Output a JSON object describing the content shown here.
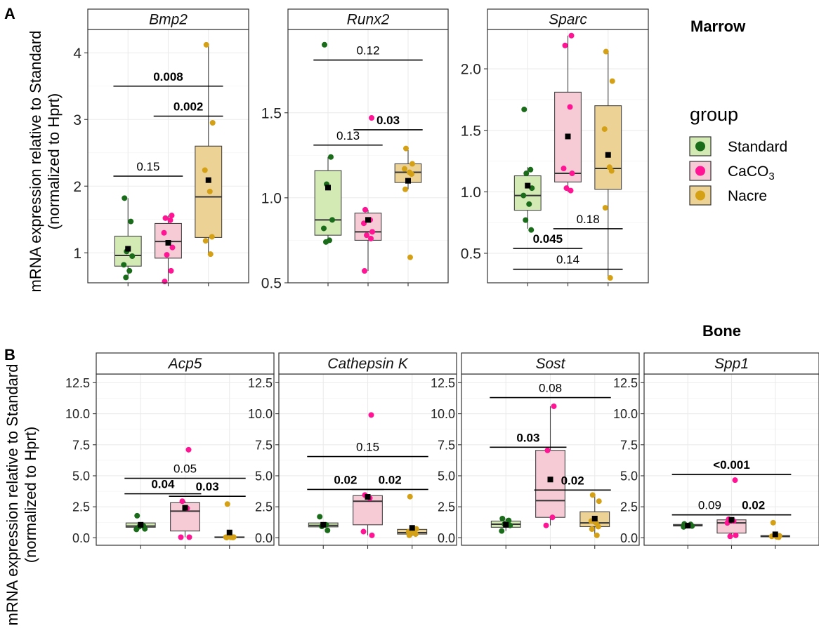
{
  "labels": {
    "panel_a": "A",
    "panel_b": "B",
    "marrow": "Marrow",
    "bone": "Bone",
    "ylabel_line1": "mRNA expression relative to Standard",
    "ylabel_line2": "(normalized to Hprt)"
  },
  "legend": {
    "title": "group",
    "placement": "right",
    "items": [
      {
        "label": "Standard",
        "fill": "#d3eab5",
        "point": "#1a6b1a"
      },
      {
        "label": "CaCO",
        "sub": "3",
        "fill": "#f6cbd6",
        "point": "#ff1493"
      },
      {
        "label": "Nacre",
        "fill": "#edd295",
        "point": "#d4a015"
      }
    ]
  },
  "colors": {
    "standard_box": "#d3eab5",
    "caco3_box": "#f6cbd6",
    "nacre_box": "#edd295",
    "standard_point": "#1a6b1a",
    "caco3_point": "#ff1493",
    "nacre_point": "#d4a015",
    "mean_marker": "#000000",
    "strip_bg": "#ffffff",
    "grid": "#ebebeb"
  },
  "chart_data": [
    {
      "type": "box",
      "section": "Marrow",
      "facet": "Bmp2",
      "ylim": [
        0.55,
        4.35
      ],
      "yticks": [
        1,
        2,
        3,
        4
      ],
      "tick_labels": [
        "1",
        "2",
        "3",
        "4"
      ],
      "groups": [
        {
          "name": "Standard",
          "q1": 0.8,
          "median": 0.96,
          "q3": 1.25,
          "wlo": 0.65,
          "whi": 1.82,
          "mean": 1.06,
          "points": [
            1.82,
            1.47,
            1.02,
            0.95,
            0.82,
            0.73,
            0.63
          ]
        },
        {
          "name": "CaCO3",
          "q1": 0.92,
          "median": 1.17,
          "q3": 1.44,
          "wlo": 0.57,
          "whi": 1.56,
          "mean": 1.15,
          "points": [
            1.56,
            1.52,
            1.49,
            1.3,
            1.08,
            0.97,
            0.73,
            0.57
          ]
        },
        {
          "name": "Nacre",
          "q1": 1.23,
          "median": 1.84,
          "q3": 2.6,
          "wlo": 0.97,
          "whi": 4.1,
          "mean": 2.09,
          "points": [
            4.12,
            2.95,
            2.24,
            1.92,
            1.24,
            1.18,
            0.98
          ]
        }
      ],
      "comparisons": [
        {
          "from": 0,
          "to": 1,
          "y": 2.15,
          "label": "0.15",
          "bold": false
        },
        {
          "from": 1,
          "to": 2,
          "y": 3.05,
          "label": "0.002",
          "bold": true
        },
        {
          "from": 0,
          "to": 2,
          "y": 3.5,
          "label": "0.008",
          "bold": true
        }
      ]
    },
    {
      "type": "box",
      "section": "Marrow",
      "facet": "Runx2",
      "ylim": [
        0.5,
        1.99
      ],
      "yticks": [
        0.5,
        1.0,
        1.5
      ],
      "tick_labels": [
        "0.5",
        "1.0",
        "1.5"
      ],
      "groups": [
        {
          "name": "Standard",
          "q1": 0.78,
          "median": 0.87,
          "q3": 1.16,
          "wlo": 0.73,
          "whi": 1.24,
          "mean": 1.06,
          "points": [
            1.9,
            1.24,
            1.08,
            0.87,
            0.82,
            0.75,
            0.74
          ]
        },
        {
          "name": "CaCO3",
          "q1": 0.75,
          "median": 0.8,
          "q3": 0.91,
          "wlo": 0.57,
          "whi": 0.93,
          "mean": 0.87,
          "points": [
            1.47,
            0.93,
            0.87,
            0.85,
            0.8,
            0.78,
            0.76,
            0.57
          ]
        },
        {
          "name": "Nacre",
          "q1": 1.09,
          "median": 1.15,
          "q3": 1.2,
          "wlo": 1.05,
          "whi": 1.28,
          "mean": 1.1,
          "points": [
            1.29,
            1.2,
            1.17,
            1.15,
            1.14,
            1.05,
            0.65
          ]
        }
      ],
      "comparisons": [
        {
          "from": 0,
          "to": 1,
          "y": 1.31,
          "label": "0.13",
          "bold": false
        },
        {
          "from": 1,
          "to": 2,
          "y": 1.4,
          "label": "0.03",
          "bold": true
        },
        {
          "from": 0,
          "to": 2,
          "y": 1.81,
          "label": "0.12",
          "bold": false
        }
      ]
    },
    {
      "type": "box",
      "section": "Marrow",
      "facet": "Sparc",
      "ylim": [
        0.26,
        2.32
      ],
      "yticks": [
        0.5,
        1.0,
        1.5,
        2.0
      ],
      "tick_labels": [
        "0.5",
        "1.0",
        "1.5",
        "2.0"
      ],
      "groups": [
        {
          "name": "Standard",
          "q1": 0.85,
          "median": 0.97,
          "q3": 1.13,
          "wlo": 0.7,
          "whi": 1.2,
          "mean": 1.05,
          "points": [
            1.67,
            1.18,
            1.15,
            1.03,
            0.97,
            0.9,
            0.77,
            0.69
          ]
        },
        {
          "name": "CaCO3",
          "q1": 1.08,
          "median": 1.15,
          "q3": 1.81,
          "wlo": 1.0,
          "whi": 2.27,
          "mean": 1.45,
          "points": [
            2.27,
            2.19,
            1.69,
            1.19,
            1.15,
            1.03,
            1.01
          ]
        },
        {
          "name": "Nacre",
          "q1": 1.02,
          "median": 1.19,
          "q3": 1.7,
          "wlo": 0.3,
          "whi": 2.14,
          "mean": 1.3,
          "points": [
            2.14,
            1.9,
            1.51,
            1.2,
            1.17,
            0.87,
            0.3
          ]
        }
      ],
      "comparisons": [
        {
          "from": 0,
          "to": 1,
          "y": 0.54,
          "label": "0.045",
          "bold": true
        },
        {
          "from": 1,
          "to": 2,
          "y": 0.7,
          "label": "0.18",
          "bold": false
        },
        {
          "from": 0,
          "to": 2,
          "y": 0.37,
          "label": "0.14",
          "bold": false
        }
      ]
    },
    {
      "type": "box",
      "section": "Bone",
      "facet": "Acp5",
      "ylim": [
        -0.6,
        13.2
      ],
      "yticks": [
        0,
        2.5,
        5,
        7.5,
        10,
        12.5
      ],
      "tick_labels": [
        "0.0",
        "2.5",
        "5.0",
        "7.5",
        "10.0",
        "12.5"
      ],
      "groups": [
        {
          "name": "Standard",
          "q1": 0.85,
          "median": 0.95,
          "q3": 1.2,
          "wlo": 0.75,
          "whi": 1.25,
          "mean": 1.05,
          "points": [
            1.78,
            0.95,
            0.9,
            0.72,
            0.68
          ]
        },
        {
          "name": "CaCO3",
          "q1": 0.55,
          "median": 2.15,
          "q3": 2.83,
          "wlo": 0.05,
          "whi": 2.95,
          "mean": 2.42,
          "points": [
            7.1,
            2.95,
            2.38,
            0.05,
            0.05
          ]
        },
        {
          "name": "Nacre",
          "q1": 0.02,
          "median": 0.04,
          "q3": 0.08,
          "wlo": 0.0,
          "whi": 0.12,
          "mean": 0.43,
          "points": [
            2.72,
            0.06,
            0.05,
            0.04,
            0.03,
            0.02
          ]
        }
      ],
      "comparisons": [
        {
          "from": 0,
          "to": 1,
          "y": 3.55,
          "label": "0.04",
          "bold": true
        },
        {
          "from": 1,
          "to": 2,
          "y": 3.35,
          "label": "0.03",
          "bold": true
        },
        {
          "from": 0,
          "to": 2,
          "y": 4.8,
          "label": "0.05",
          "bold": false
        }
      ]
    },
    {
      "type": "box",
      "section": "Bone",
      "facet": "Cathepsin K",
      "ylim": [
        -0.6,
        13.2
      ],
      "yticks": [
        0,
        2.5,
        5,
        7.5,
        10,
        12.5
      ],
      "tick_labels": [
        "0.0",
        "2.5",
        "5.0",
        "7.5",
        "10.0",
        "12.5"
      ],
      "groups": [
        {
          "name": "Standard",
          "q1": 0.88,
          "median": 1.0,
          "q3": 1.2,
          "wlo": 0.85,
          "whi": 1.25,
          "mean": 1.05,
          "points": [
            1.7,
            1.05,
            0.92,
            0.6
          ]
        },
        {
          "name": "CaCO3",
          "q1": 1.05,
          "median": 2.95,
          "q3": 3.4,
          "wlo": 0.2,
          "whi": 3.45,
          "mean": 3.3,
          "points": [
            9.9,
            3.45,
            3.2,
            0.5,
            0.2
          ]
        },
        {
          "name": "Nacre",
          "q1": 0.3,
          "median": 0.42,
          "q3": 0.68,
          "wlo": 0.15,
          "whi": 0.75,
          "mean": 0.8,
          "points": [
            3.32,
            0.72,
            0.5,
            0.4,
            0.3,
            0.2
          ]
        }
      ],
      "comparisons": [
        {
          "from": 0,
          "to": 1,
          "y": 3.9,
          "label": "0.02",
          "bold": true
        },
        {
          "from": 1,
          "to": 2,
          "y": 3.9,
          "label": "0.02",
          "bold": true
        },
        {
          "from": 0,
          "to": 2,
          "y": 6.55,
          "label": "0.15",
          "bold": false
        }
      ]
    },
    {
      "type": "box",
      "section": "Bone",
      "facet": "Sost",
      "ylim": [
        -0.6,
        13.2
      ],
      "yticks": [
        0,
        2.5,
        5,
        7.5,
        10,
        12.5
      ],
      "tick_labels": [
        "0.0",
        "2.5",
        "5.0",
        "7.5",
        "10.0",
        "12.5"
      ],
      "groups": [
        {
          "name": "Standard",
          "q1": 0.85,
          "median": 1.1,
          "q3": 1.35,
          "wlo": 0.55,
          "whi": 1.55,
          "mean": 1.05,
          "points": [
            1.55,
            1.4,
            1.1,
            1.0,
            0.55
          ]
        },
        {
          "name": "CaCO3",
          "q1": 1.65,
          "median": 3.0,
          "q3": 7.05,
          "wlo": 1.0,
          "whi": 10.6,
          "mean": 4.7,
          "points": [
            10.6,
            7.05,
            1.65,
            1.0
          ]
        },
        {
          "name": "Nacre",
          "q1": 0.9,
          "median": 1.2,
          "q3": 2.1,
          "wlo": 0.2,
          "whi": 3.45,
          "mean": 1.55,
          "points": [
            3.45,
            2.95,
            1.35,
            1.2,
            0.9,
            0.7,
            0.2
          ]
        }
      ],
      "comparisons": [
        {
          "from": 0,
          "to": 1,
          "y": 7.3,
          "label": "0.03",
          "bold": true
        },
        {
          "from": 1,
          "to": 2,
          "y": 3.85,
          "label": "0.02",
          "bold": true
        },
        {
          "from": 0,
          "to": 2,
          "y": 11.3,
          "label": "0.08",
          "bold": false
        }
      ]
    },
    {
      "type": "box",
      "section": "Bone",
      "facet": "Spp1",
      "ylim": [
        -0.6,
        13.2
      ],
      "yticks": [
        0,
        2.5,
        5,
        7.5,
        10,
        12.5
      ],
      "tick_labels": [
        "0.0",
        "2.5",
        "5.0",
        "7.5",
        "10.0",
        "12.5"
      ],
      "groups": [
        {
          "name": "Standard",
          "q1": 0.95,
          "median": 1.0,
          "q3": 1.08,
          "wlo": 0.9,
          "whi": 1.12,
          "mean": 0.98,
          "points": [
            1.12,
            1.08,
            1.0,
            0.95,
            0.88
          ]
        },
        {
          "name": "CaCO3",
          "q1": 0.38,
          "median": 1.2,
          "q3": 1.45,
          "wlo": 0.1,
          "whi": 1.5,
          "mean": 1.45,
          "points": [
            4.65,
            1.5,
            1.35,
            1.2,
            0.2,
            0.12
          ]
        },
        {
          "name": "Nacre",
          "q1": 0.08,
          "median": 0.12,
          "q3": 0.18,
          "wlo": 0.02,
          "whi": 0.22,
          "mean": 0.28,
          "points": [
            1.22,
            0.16,
            0.12,
            0.08,
            0.05
          ]
        }
      ],
      "comparisons": [
        {
          "from": 0,
          "to": 1,
          "y": 1.85,
          "label": "0.09",
          "bold": false
        },
        {
          "from": 1,
          "to": 2,
          "y": 1.85,
          "label": "0.02",
          "bold": true
        },
        {
          "from": 0,
          "to": 2,
          "y": 5.1,
          "label": "<0.001",
          "bold": true
        }
      ]
    }
  ]
}
